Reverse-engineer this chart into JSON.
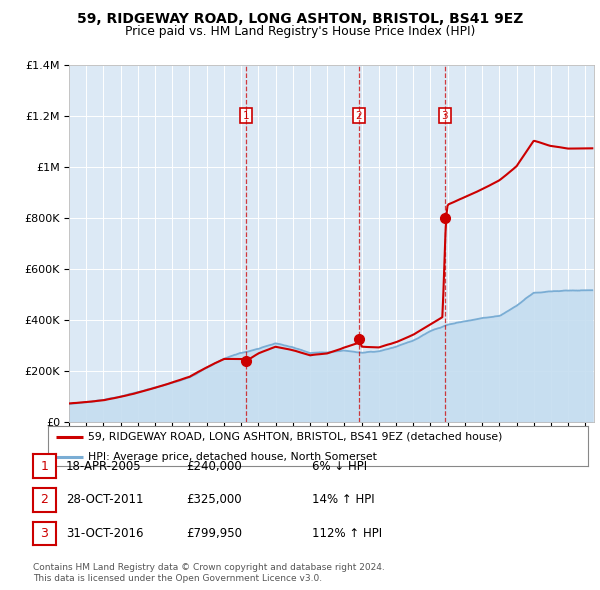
{
  "title1": "59, RIDGEWAY ROAD, LONG ASHTON, BRISTOL, BS41 9EZ",
  "title2": "Price paid vs. HM Land Registry's House Price Index (HPI)",
  "plot_bg_color": "#dce9f5",
  "hpi_color": "#7aadd4",
  "hpi_fill_color": "#c5ddf0",
  "property_color": "#cc0000",
  "sale_color": "#cc0000",
  "ylim_max": 1400000,
  "xlim_start": 1995.0,
  "xlim_end": 2025.5,
  "sales": [
    {
      "label": "1",
      "date": 2005.3,
      "price": 240000
    },
    {
      "label": "2",
      "date": 2011.83,
      "price": 325000
    },
    {
      "label": "3",
      "date": 2016.83,
      "price": 799950
    }
  ],
  "legend_property": "59, RIDGEWAY ROAD, LONG ASHTON, BRISTOL, BS41 9EZ (detached house)",
  "legend_hpi": "HPI: Average price, detached house, North Somerset",
  "footer1": "Contains HM Land Registry data © Crown copyright and database right 2024.",
  "footer2": "This data is licensed under the Open Government Licence v3.0.",
  "table_rows": [
    {
      "num": "1",
      "date": "18-APR-2005",
      "price": "£240,000",
      "change": "6% ↓ HPI"
    },
    {
      "num": "2",
      "date": "28-OCT-2011",
      "price": "£325,000",
      "change": "14% ↑ HPI"
    },
    {
      "num": "3",
      "date": "31-OCT-2016",
      "price": "£799,950",
      "change": "112% ↑ HPI"
    }
  ]
}
